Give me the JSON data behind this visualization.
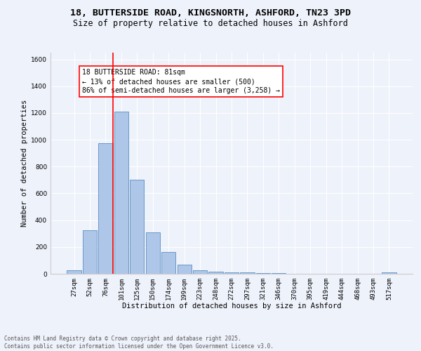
{
  "title_line1": "18, BUTTERSIDE ROAD, KINGSNORTH, ASHFORD, TN23 3PD",
  "title_line2": "Size of property relative to detached houses in Ashford",
  "xlabel": "Distribution of detached houses by size in Ashford",
  "ylabel": "Number of detached properties",
  "categories": [
    "27sqm",
    "52sqm",
    "76sqm",
    "101sqm",
    "125sqm",
    "150sqm",
    "174sqm",
    "199sqm",
    "223sqm",
    "248sqm",
    "272sqm",
    "297sqm",
    "321sqm",
    "346sqm",
    "370sqm",
    "395sqm",
    "419sqm",
    "444sqm",
    "468sqm",
    "493sqm",
    "517sqm"
  ],
  "values": [
    25,
    325,
    975,
    1210,
    700,
    310,
    160,
    70,
    28,
    18,
    13,
    8,
    5,
    3,
    2,
    1,
    1,
    0,
    0,
    0,
    10
  ],
  "bar_color": "#aec6e8",
  "bar_edge_color": "#5a8fc2",
  "vline_color": "red",
  "annotation_text": "18 BUTTERSIDE ROAD: 81sqm\n← 13% of detached houses are smaller (500)\n86% of semi-detached houses are larger (3,258) →",
  "annotation_box_color": "white",
  "annotation_box_edge_color": "red",
  "ylim": [
    0,
    1650
  ],
  "yticks": [
    0,
    200,
    400,
    600,
    800,
    1000,
    1200,
    1400,
    1600
  ],
  "bg_color": "#eef2fb",
  "grid_color": "#ffffff",
  "footer_line1": "Contains HM Land Registry data © Crown copyright and database right 2025.",
  "footer_line2": "Contains public sector information licensed under the Open Government Licence v3.0.",
  "title_fontsize": 9.5,
  "subtitle_fontsize": 8.5,
  "axis_label_fontsize": 7.5,
  "tick_fontsize": 6.5,
  "annotation_fontsize": 7,
  "footer_fontsize": 5.5
}
